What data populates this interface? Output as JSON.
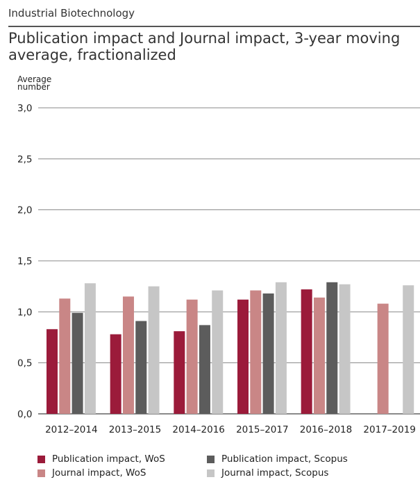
{
  "header": {
    "section": "Industrial Biotechnology",
    "title": "Publication impact and Journal impact, 3-year moving average, fractionalized"
  },
  "chart_data": {
    "type": "bar",
    "title": "Publication impact and Journal impact, 3-year moving average, fractionalized",
    "ylabel_lines": [
      "Average",
      "number"
    ],
    "ylim": [
      0,
      3.0
    ],
    "yticks": [
      "0,0",
      "0,5",
      "1,0",
      "1,5",
      "2,0",
      "2,5",
      "3,0"
    ],
    "ytick_values": [
      0,
      0.5,
      1.0,
      1.5,
      2.0,
      2.5,
      3.0
    ],
    "grid": true,
    "legend_position": "bottom",
    "categories": [
      "2012–2014",
      "2013–2015",
      "2014–2016",
      "2015–2017",
      "2016–2018",
      "2017–2019"
    ],
    "series": [
      {
        "name": "Publication impact, WoS",
        "color": "#9b1b3a",
        "values": [
          0.83,
          0.78,
          0.81,
          1.12,
          1.22,
          null
        ]
      },
      {
        "name": "Journal impact, WoS",
        "color": "#c98686",
        "values": [
          1.13,
          1.15,
          1.12,
          1.21,
          1.14,
          1.08
        ]
      },
      {
        "name": "Publication impact, Scopus",
        "color": "#5c5c5c",
        "values": [
          0.99,
          0.91,
          0.87,
          1.18,
          1.29,
          null
        ]
      },
      {
        "name": "Journal impact, Scopus",
        "color": "#c6c6c6",
        "values": [
          1.28,
          1.25,
          1.21,
          1.29,
          1.27,
          1.26
        ]
      }
    ]
  }
}
